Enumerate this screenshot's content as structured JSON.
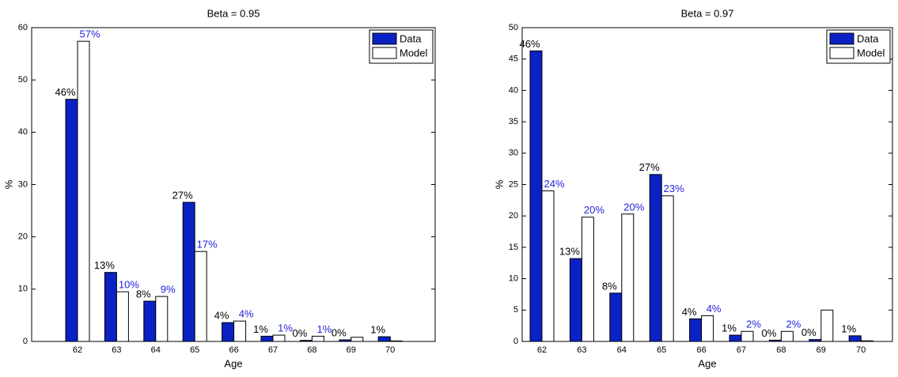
{
  "chart_data": [
    {
      "type": "bar",
      "title": "Beta = 0.95",
      "xlabel": "Age",
      "ylabel": "%",
      "categories": [
        "62",
        "63",
        "64",
        "65",
        "66",
        "67",
        "68",
        "69",
        "70"
      ],
      "series": [
        {
          "name": "Data",
          "color": "#0a22c4",
          "label_color": "#000000",
          "values": [
            46.3,
            13.2,
            7.7,
            26.6,
            3.6,
            1.0,
            0.2,
            0.3,
            0.9
          ],
          "value_labels": [
            "46%",
            "13%",
            "8%",
            "27%",
            "4%",
            "1%",
            "0%",
            "0%",
            "1%"
          ]
        },
        {
          "name": "Model",
          "color": "#ffffff",
          "label_color": "#2222dd",
          "values": [
            57.4,
            9.5,
            8.6,
            17.2,
            3.9,
            1.2,
            1.0,
            0.8,
            0.1
          ],
          "value_labels": [
            "57%",
            "10%",
            "9%",
            "17%",
            "4%",
            "1%",
            "1%",
            null,
            null
          ]
        }
      ],
      "ylim": [
        0,
        60
      ],
      "yticks": [
        0,
        10,
        20,
        30,
        40,
        50,
        60
      ],
      "legend": "upper right"
    },
    {
      "type": "bar",
      "title": "Beta = 0.97",
      "xlabel": "Age",
      "ylabel": "%",
      "categories": [
        "62",
        "63",
        "64",
        "65",
        "66",
        "67",
        "68",
        "69",
        "70"
      ],
      "series": [
        {
          "name": "Data",
          "color": "#0a22c4",
          "label_color": "#000000",
          "values": [
            46.3,
            13.2,
            7.7,
            26.6,
            3.6,
            1.0,
            0.2,
            0.3,
            0.9
          ],
          "value_labels": [
            "46%",
            "13%",
            "8%",
            "27%",
            "4%",
            "1%",
            "0%",
            "0%",
            "1%"
          ]
        },
        {
          "name": "Model",
          "color": "#ffffff",
          "label_color": "#2222dd",
          "values": [
            24.0,
            19.8,
            20.3,
            23.2,
            4.1,
            1.6,
            1.6,
            5.0,
            0.1
          ],
          "value_labels": [
            "24%",
            "20%",
            "20%",
            "23%",
            "4%",
            "2%",
            "2%",
            null,
            null
          ]
        }
      ],
      "ylim": [
        0,
        50
      ],
      "yticks": [
        0,
        5,
        10,
        15,
        20,
        25,
        30,
        35,
        40,
        45,
        50
      ],
      "legend": "upper right"
    }
  ]
}
